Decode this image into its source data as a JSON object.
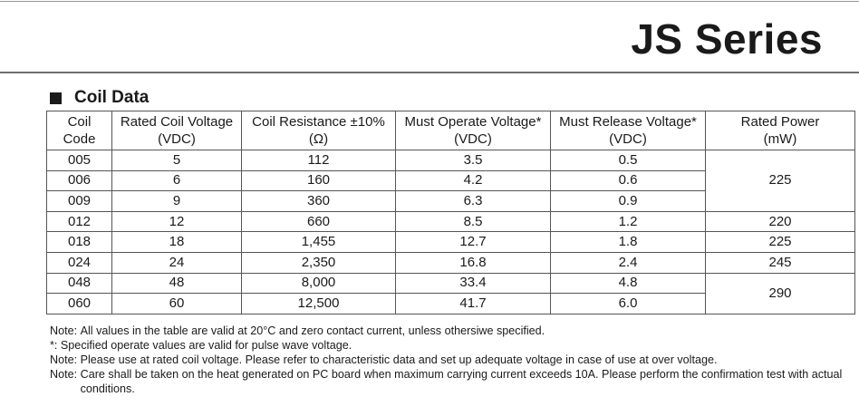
{
  "header": {
    "series_title": "JS Series"
  },
  "section": {
    "title": "Coil Data"
  },
  "table": {
    "columns": [
      {
        "line1": "Coil",
        "line2": "Code"
      },
      {
        "line1": "Rated Coil Voltage",
        "line2": "(VDC)"
      },
      {
        "line1": "Coil Resistance ±10%",
        "line2": "(Ω)"
      },
      {
        "line1": "Must Operate Voltage*",
        "line2": "(VDC)"
      },
      {
        "line1": "Must Release Voltage*",
        "line2": "(VDC)"
      },
      {
        "line1": "Rated Power",
        "line2": "(mW)"
      }
    ],
    "rows": [
      {
        "code": "005",
        "rated_voltage": "5",
        "resistance": "112",
        "operate": "3.5",
        "release": "0.5"
      },
      {
        "code": "006",
        "rated_voltage": "6",
        "resistance": "160",
        "operate": "4.2",
        "release": "0.6"
      },
      {
        "code": "009",
        "rated_voltage": "9",
        "resistance": "360",
        "operate": "6.3",
        "release": "0.9"
      },
      {
        "code": "012",
        "rated_voltage": "12",
        "resistance": "660",
        "operate": "8.5",
        "release": "1.2"
      },
      {
        "code": "018",
        "rated_voltage": "18",
        "resistance": "1,455",
        "operate": "12.7",
        "release": "1.8"
      },
      {
        "code": "024",
        "rated_voltage": "24",
        "resistance": "2,350",
        "operate": "16.8",
        "release": "2.4"
      },
      {
        "code": "048",
        "rated_voltage": "48",
        "resistance": "8,000",
        "operate": "33.4",
        "release": "4.8"
      },
      {
        "code": "060",
        "rated_voltage": "60",
        "resistance": "12,500",
        "operate": "41.7",
        "release": "6.0"
      }
    ],
    "power_groups": [
      "225",
      "220",
      "225",
      "245",
      "290"
    ]
  },
  "notes": [
    {
      "label": "Note: ",
      "text": "All values in the table are valid at 20°C and zero contact current, unless othersiwe specified."
    },
    {
      "label": "*: ",
      "text": "Specified operate values are valid for pulse wave voltage."
    },
    {
      "label": "Note: ",
      "text": "Please use at rated coil voltage. Please refer to characteristic data and set up adequate voltage in case of use at over voltage."
    },
    {
      "label": "Note: ",
      "text": "Care shall be taken on the heat generated on PC board when maximum carrying current exceeds 10A. Please perform the confirmation test with actual conditions."
    }
  ]
}
